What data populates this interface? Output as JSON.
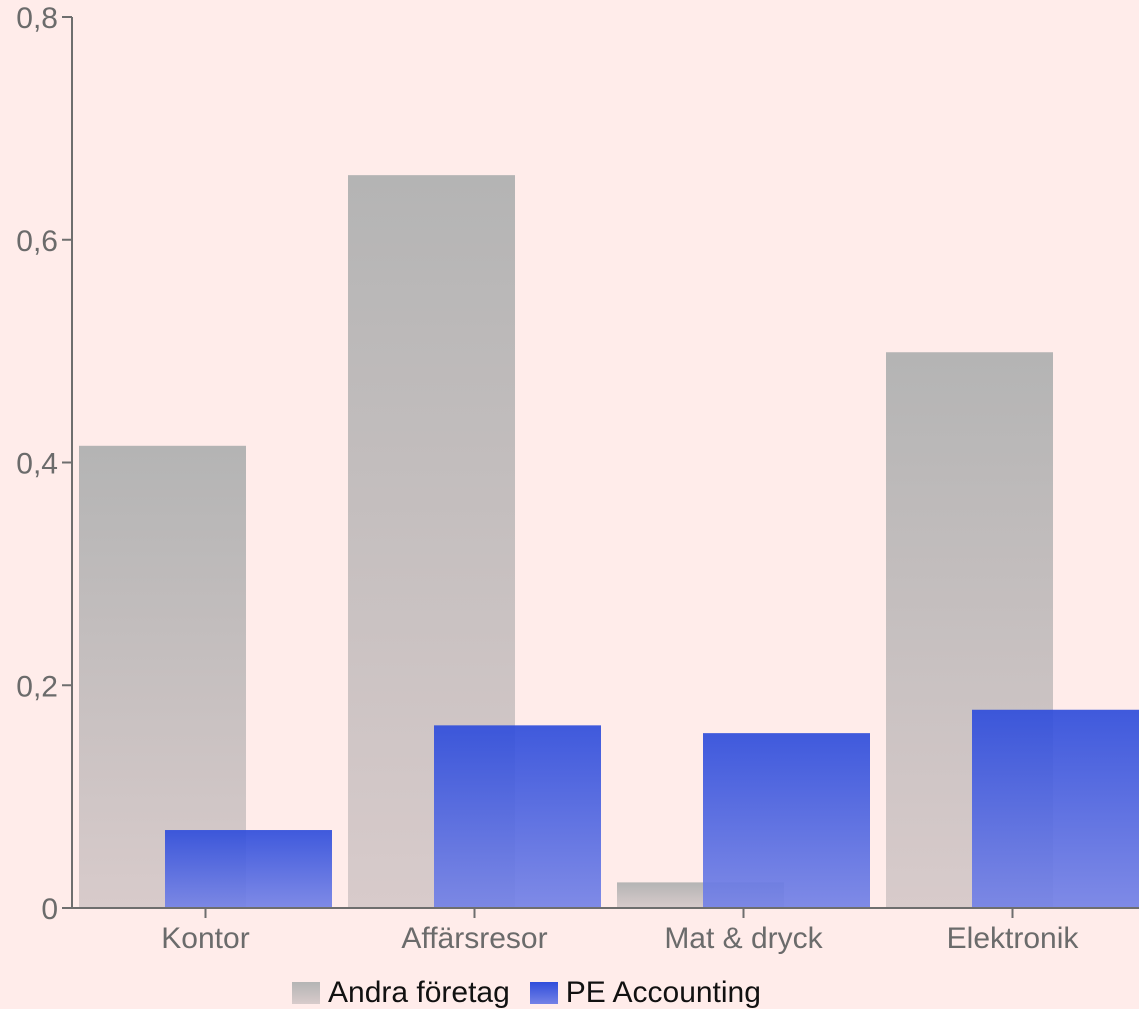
{
  "chart_data": {
    "type": "bar",
    "categories": [
      "Kontor",
      "Affärsresor",
      "Mat & dryck",
      "Elektronik"
    ],
    "series": [
      {
        "name": "Andra företag",
        "values": [
          0.415,
          0.658,
          0.023,
          0.499
        ],
        "color_top": "#b4b4b4",
        "color_bottom": "#d8cbcb"
      },
      {
        "name": "PE Accounting",
        "values": [
          0.07,
          0.164,
          0.157,
          0.178
        ],
        "color_top": "#2f4ddb",
        "color_bottom": "#7482e6"
      }
    ],
    "yticks": [
      "0",
      "0,2",
      "0,4",
      "0,6",
      "0,8"
    ],
    "ytick_values": [
      0,
      0.2,
      0.4,
      0.6,
      0.8
    ],
    "ylim": [
      0,
      0.8
    ],
    "grid": false,
    "legend_position": "bottom"
  }
}
